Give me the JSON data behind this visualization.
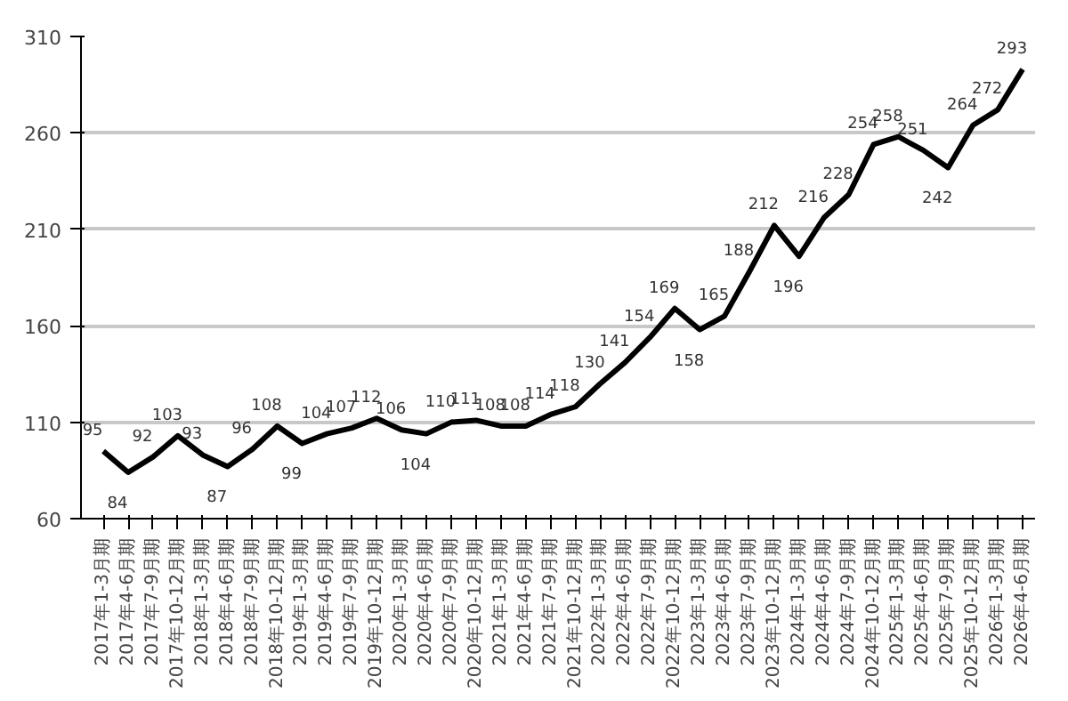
{
  "chart_data": {
    "type": "line",
    "categories": [
      "2017年1-3月期",
      "2017年4-6月期",
      "2017年7-9月期",
      "2017年10-12月期",
      "2018年1-3月期",
      "2018年4-6月期",
      "2018年7-9月期",
      "2018年10-12月期",
      "2019年1-3月期",
      "2019年4-6月期",
      "2019年7-9月期",
      "2019年10-12月期",
      "2020年1-3月期",
      "2020年4-6月期",
      "2020年7-9月期",
      "2020年10-12月期",
      "2021年1-3月期",
      "2021年4-6月期",
      "2021年7-9月期",
      "2021年10-12月期",
      "2022年1-3月期",
      "2022年4-6月期",
      "2022年7-9月期",
      "2022年10-12月期",
      "2023年1-3月期",
      "2023年4-6月期",
      "2023年7-9月期",
      "2023年10-12月期",
      "2024年1-3月期",
      "2024年4-6月期",
      "2024年7-9月期",
      "2024年10-12月期",
      "2025年1-3月期",
      "2025年4-6月期",
      "2025年7-9月期",
      "2025年10-12月期",
      "2026年1-3月期",
      "2026年4-6月期"
    ],
    "series": [
      {
        "color": "#000000",
        "values": [
          95,
          84,
          92,
          103,
          93,
          87,
          96,
          108,
          99,
          104,
          107,
          112,
          106,
          104,
          110,
          111,
          108,
          108,
          114,
          118,
          130,
          141,
          154,
          169,
          158,
          165,
          188,
          212,
          196,
          216,
          228,
          254,
          258,
          251,
          242,
          264,
          272,
          293
        ]
      }
    ],
    "ylim": [
      60,
      310
    ],
    "yticks": [
      60,
      110,
      160,
      210,
      260,
      310
    ],
    "grid": "y",
    "data_labels": true,
    "marker": "none",
    "line_style": "solid"
  }
}
